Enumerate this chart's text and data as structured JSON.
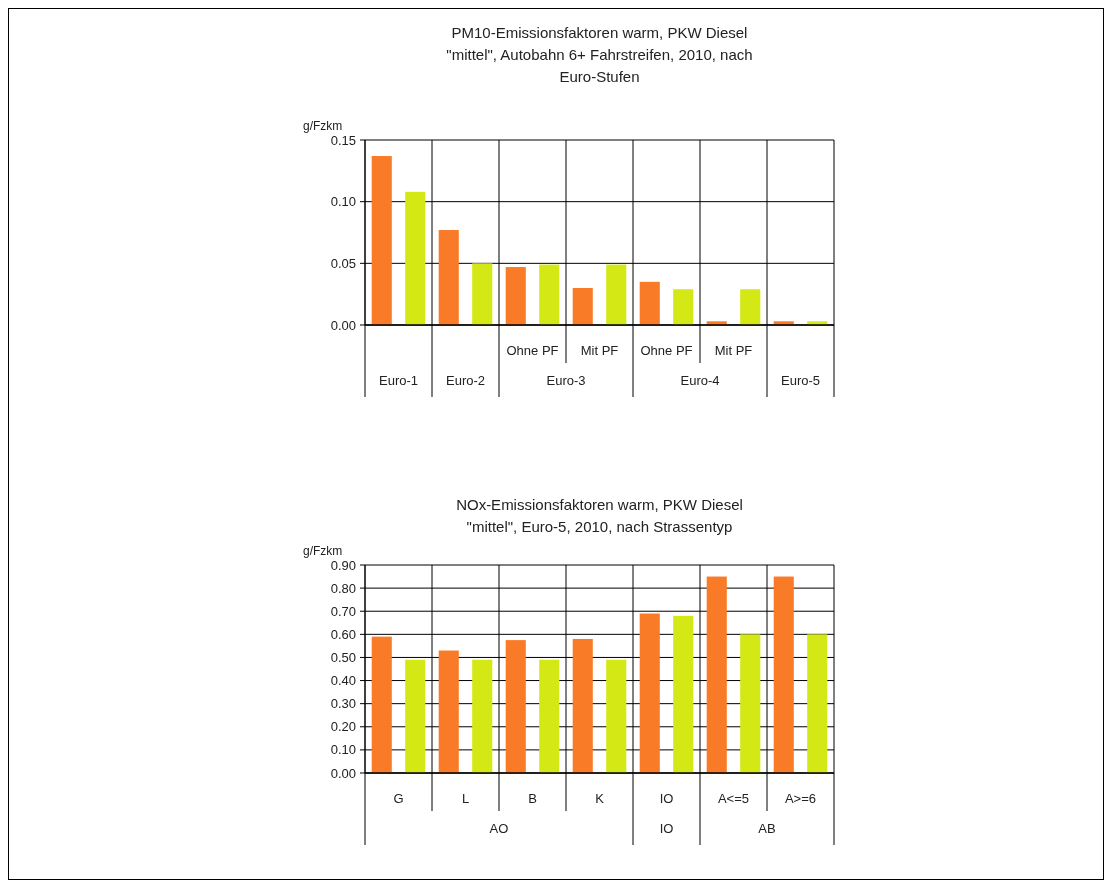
{
  "chart_data": [
    {
      "type": "bar",
      "title": "PM10-Emissionsfaktoren warm, PKW Diesel\n\"mittel\", Autobahn 6+ Fahrstreifen, 2010, nach\nEuro-Stufen",
      "ylabel": "g/Fzkm",
      "categories": [
        "Euro-1",
        "Euro-2",
        "Ohne PF",
        "Mit PF",
        "Ohne PF",
        "Mit PF",
        "Euro-5"
      ],
      "annotations": [
        "Euro-3",
        "Euro-4"
      ],
      "series": [
        {
          "color": "#f97a27",
          "values": [
            0.137,
            0.077,
            0.047,
            0.03,
            0.035,
            0.003,
            0.003
          ]
        },
        {
          "color": "#d4e815",
          "values": [
            0.108,
            0.05,
            0.049,
            0.049,
            0.029,
            0.029,
            0.003
          ]
        }
      ],
      "ylim": [
        0,
        0.15
      ],
      "yticks": [
        {
          "value": 0,
          "label": "0.00"
        },
        {
          "value": 0.05,
          "label": "0.05"
        },
        {
          "value": 0.1,
          "label": "0.10"
        },
        {
          "value": 0.15,
          "label": "0.15"
        }
      ],
      "grid": "y"
    },
    {
      "type": "bar",
      "title": "NOx-Emissionsfaktoren warm, PKW Diesel\n\"mittel\", Euro-5, 2010, nach Strassentyp",
      "ylabel": "g/Fzkm",
      "categories": [
        "G",
        "L",
        "B",
        "K",
        "IO",
        "A<=5",
        "A>=6"
      ],
      "annotations": [
        "AO",
        "IO",
        "AB"
      ],
      "series": [
        {
          "color": "#f97a27",
          "values": [
            0.59,
            0.53,
            0.575,
            0.58,
            0.69,
            0.85,
            0.85
          ]
        },
        {
          "color": "#d4e815",
          "values": [
            0.49,
            0.49,
            0.49,
            0.49,
            0.68,
            0.6,
            0.6
          ]
        }
      ],
      "ylim": [
        0,
        0.9
      ],
      "yticks": [
        {
          "value": 0,
          "label": "0.00"
        },
        {
          "value": 0.1,
          "label": "0.10"
        },
        {
          "value": 0.2,
          "label": "0.20"
        },
        {
          "value": 0.3,
          "label": "0.30"
        },
        {
          "value": 0.4,
          "label": "0.40"
        },
        {
          "value": 0.5,
          "label": "0.50"
        },
        {
          "value": 0.6,
          "label": "0.60"
        },
        {
          "value": 0.7,
          "label": "0.70"
        },
        {
          "value": 0.8,
          "label": "0.80"
        },
        {
          "value": 0.9,
          "label": "0.90"
        }
      ],
      "grid": "y"
    }
  ]
}
